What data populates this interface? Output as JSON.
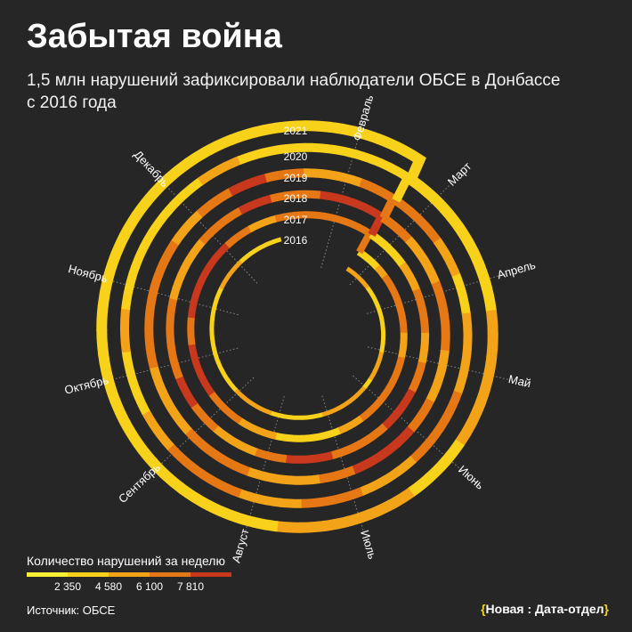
{
  "header": {
    "title": "Забытая война",
    "subtitle": "1,5 млн нарушений зафиксировали наблюдатели ОБСЕ в Донбассе с 2016 года"
  },
  "chart_data": {
    "type": "spiral",
    "title": "Забытая война",
    "subtitle": "1,5 млн нарушений зафиксировали наблюдатели ОБСЕ в Донбассе с 2016 года",
    "unit": "Количество нарушений за неделю",
    "months": [
      "Февраль",
      "Март",
      "Апрель",
      "Май",
      "Июнь",
      "Июль",
      "Август",
      "Сентябрь",
      "Октябрь",
      "Ноябрь",
      "Декабрь"
    ],
    "years": [
      "2016",
      "2017",
      "2018",
      "2019",
      "2020",
      "2021"
    ],
    "levels": [
      1,
      2,
      3,
      4
    ],
    "series": [
      {
        "name": "2016",
        "weekly_level": [
          2,
          2,
          2,
          1,
          1,
          1,
          1,
          1,
          1,
          1,
          2,
          2,
          2,
          1,
          2,
          2,
          2,
          2,
          2,
          1,
          1,
          1,
          1,
          1,
          2,
          2,
          2,
          2,
          1,
          1,
          1,
          1,
          1,
          1,
          1,
          1,
          1,
          1,
          2,
          2,
          2,
          1,
          1,
          1,
          1
        ]
      },
      {
        "name": "2017",
        "weekly_level": [
          1,
          1,
          2,
          3,
          3,
          3,
          3,
          3,
          2,
          2,
          3,
          3,
          3,
          3,
          3,
          3,
          2,
          2,
          1,
          1,
          1,
          1,
          1,
          2,
          2,
          2,
          3,
          3,
          3,
          4,
          4,
          4,
          4,
          3,
          3,
          4,
          4,
          4,
          4,
          4,
          4,
          3,
          3,
          2,
          2,
          3,
          3,
          3,
          3,
          3,
          3,
          3
        ]
      },
      {
        "name": "2018",
        "weekly_level": [
          1,
          1,
          1,
          2,
          2,
          3,
          3,
          3,
          2,
          2,
          3,
          3,
          4,
          4,
          4,
          3,
          3,
          3,
          3,
          4,
          4,
          4,
          3,
          3,
          2,
          2,
          2,
          3,
          3,
          4,
          4,
          3,
          3,
          3,
          3,
          3,
          2,
          2,
          2,
          2,
          3,
          3,
          3,
          4,
          4,
          3,
          3,
          3,
          4,
          4,
          4,
          4
        ]
      },
      {
        "name": "2019",
        "weekly_level": [
          3,
          3,
          2,
          2,
          2,
          3,
          3,
          3,
          3,
          2,
          2,
          2,
          3,
          3,
          4,
          4,
          4,
          4,
          3,
          3,
          2,
          2,
          2,
          2,
          3,
          3,
          3,
          3,
          2,
          2,
          2,
          2,
          3,
          3,
          3,
          3,
          3,
          3,
          3,
          2,
          2,
          3,
          3,
          4,
          4,
          3,
          3,
          2,
          2,
          2,
          3,
          3
        ]
      },
      {
        "name": "2020",
        "weekly_level": [
          3,
          3,
          3,
          2,
          2,
          1,
          1,
          2,
          2,
          2,
          2,
          3,
          3,
          3,
          3,
          2,
          2,
          2,
          3,
          3,
          3,
          2,
          2,
          2,
          3,
          3,
          3,
          3,
          2,
          2,
          1,
          1,
          1,
          2,
          2,
          1,
          1,
          1,
          1,
          1,
          1,
          1,
          2,
          2,
          1,
          1,
          1,
          1,
          1,
          1,
          1,
          1
        ]
      },
      {
        "name": "2021",
        "weekly_level": [
          1,
          1,
          1,
          1,
          1,
          1,
          1,
          2,
          2,
          2,
          2,
          2,
          2,
          1,
          1,
          1,
          2,
          2,
          2,
          2,
          2,
          2,
          1,
          1,
          1,
          1,
          1,
          1,
          1,
          1,
          1,
          1,
          1,
          1,
          1,
          1,
          1,
          1,
          1,
          1,
          1,
          1,
          1,
          1,
          1,
          1,
          1,
          1,
          1,
          1,
          1,
          1,
          1,
          1,
          1,
          1,
          1,
          1
        ]
      }
    ]
  },
  "legend": {
    "title": "Количество нарушений за неделю",
    "ticks": [
      "2 350",
      "4 580",
      "6 100",
      "7 810"
    ],
    "colors": [
      "#f5ee33",
      "#f8d11a",
      "#f3a318",
      "#e57714",
      "#c8381c"
    ]
  },
  "footer": {
    "source": "Источник: ОБСЕ",
    "brand_open": "{",
    "brand_name": "Новая : Дата-отдел",
    "brand_close": "}"
  },
  "palette": {
    "background": "#262626",
    "text": "#ffffff",
    "grid": "#8a8a8a"
  }
}
